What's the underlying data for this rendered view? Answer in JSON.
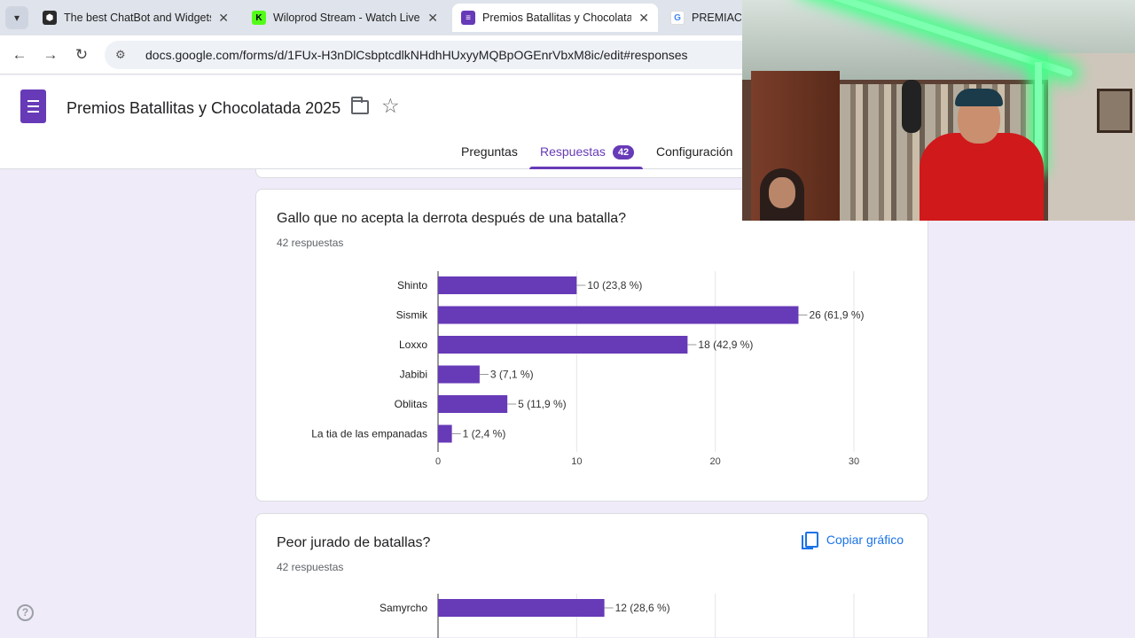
{
  "browser": {
    "tabs": [
      {
        "title": "The best ChatBot and Widgets",
        "active": false,
        "favicon": "chatbot-icon"
      },
      {
        "title": "Wiloprod Stream - Watch Live o",
        "active": false,
        "favicon": "kick-icon"
      },
      {
        "title": "Premios Batallitas y Chocolatad",
        "active": true,
        "favicon": "google-forms-icon"
      },
      {
        "title": "PREMIACIO",
        "active": false,
        "favicon": "google-icon"
      }
    ],
    "url": "docs.google.com/forms/d/1FUx-H3nDlCsbptcdlkNHdhHUxyyMQBpOGEnrVbxM8ic/edit#responses"
  },
  "form": {
    "title": "Premios Batallitas y Chocolatada 2025",
    "tabs": {
      "preguntas": "Preguntas",
      "respuestas": "Respuestas",
      "respuestas_count": "42",
      "configuracion": "Configuración"
    }
  },
  "questions": [
    {
      "title": "Gallo que no acepta la derrota después de una batalla?",
      "responses_label": "42 respuestas",
      "copy_label": "Copiar gráfico"
    },
    {
      "title": "Peor jurado de batallas?",
      "responses_label": "42 respuestas",
      "copy_label": "Copiar gráfico"
    }
  ],
  "chart_data": [
    {
      "type": "bar",
      "orientation": "horizontal",
      "title": "Gallo que no acepta la derrota después de una batalla?",
      "categories": [
        "Shinto",
        "Sismik",
        "Loxxo",
        "Jabibi",
        "Oblitas",
        "La tia de las empanadas"
      ],
      "values": [
        10,
        26,
        18,
        3,
        5,
        1
      ],
      "data_labels": [
        "10 (23,8 %)",
        "26 (61,9 %)",
        "18 (42,9 %)",
        "3 (7,1 %)",
        "5 (11,9 %)",
        "1 (2,4 %)"
      ],
      "xlim": [
        0,
        30
      ],
      "xticks": [
        0,
        10,
        20,
        30
      ],
      "grid": true,
      "color": "#673ab7"
    },
    {
      "type": "bar",
      "orientation": "horizontal",
      "title": "Peor jurado de batallas?",
      "categories": [
        "Samyrcho"
      ],
      "values": [
        12
      ],
      "data_labels": [
        "12 (28,6 %)"
      ],
      "xlim": [
        0,
        30
      ],
      "xticks": [
        0,
        10,
        20,
        30
      ],
      "grid": true,
      "color": "#673ab7"
    }
  ]
}
